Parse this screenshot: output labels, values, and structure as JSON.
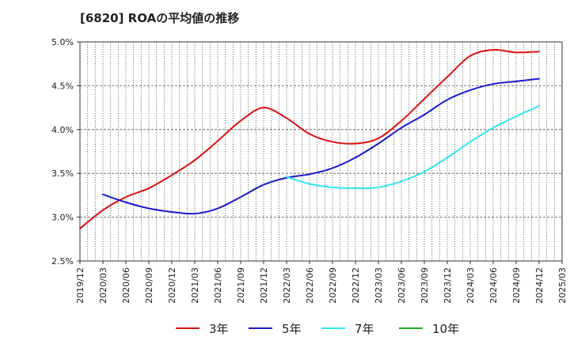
{
  "chart_data": {
    "type": "line",
    "title": "[6820]  ROAの平均値の推移",
    "xlabel": "",
    "ylabel": "",
    "ylim": [
      2.5,
      5.0
    ],
    "yticks": [
      {
        "value": 2.5,
        "label": "2.5%"
      },
      {
        "value": 3.0,
        "label": "3.0%"
      },
      {
        "value": 3.5,
        "label": "3.5%"
      },
      {
        "value": 4.0,
        "label": "4.0%"
      },
      {
        "value": 4.5,
        "label": "4.5%"
      },
      {
        "value": 5.0,
        "label": "5.0%"
      }
    ],
    "categories": [
      "2019/12",
      "2020/03",
      "2020/06",
      "2020/09",
      "2020/12",
      "2021/03",
      "2021/06",
      "2021/09",
      "2021/12",
      "2022/03",
      "2022/06",
      "2022/09",
      "2022/12",
      "2023/03",
      "2023/06",
      "2023/09",
      "2023/12",
      "2024/03",
      "2024/06",
      "2024/09",
      "2024/12",
      "2025/03"
    ],
    "grid": true,
    "legend_position": "bottom",
    "series": [
      {
        "name": "3年",
        "color": "#dd1111",
        "values": [
          2.87,
          3.08,
          3.23,
          3.33,
          3.48,
          3.65,
          3.87,
          4.1,
          4.25,
          4.13,
          3.95,
          3.86,
          3.84,
          3.9,
          4.1,
          4.35,
          4.6,
          4.84,
          4.91,
          4.88,
          4.89,
          null
        ]
      },
      {
        "name": "5年",
        "color": "#1a1acc",
        "values": [
          null,
          3.26,
          3.17,
          3.1,
          3.06,
          3.04,
          3.1,
          3.23,
          3.37,
          3.45,
          3.49,
          3.56,
          3.68,
          3.84,
          4.02,
          4.17,
          4.34,
          4.45,
          4.52,
          4.55,
          4.58,
          null
        ]
      },
      {
        "name": "7年",
        "color": "#33e6f0",
        "values": [
          null,
          null,
          null,
          null,
          null,
          null,
          null,
          null,
          null,
          3.46,
          3.38,
          3.34,
          3.33,
          3.34,
          3.41,
          3.52,
          3.68,
          3.86,
          4.02,
          4.15,
          4.27,
          null
        ]
      },
      {
        "name": "10年",
        "color": "#22aa22",
        "values": [
          null,
          null,
          null,
          null,
          null,
          null,
          null,
          null,
          null,
          null,
          null,
          null,
          null,
          null,
          null,
          null,
          null,
          null,
          null,
          null,
          null,
          null
        ]
      }
    ]
  }
}
